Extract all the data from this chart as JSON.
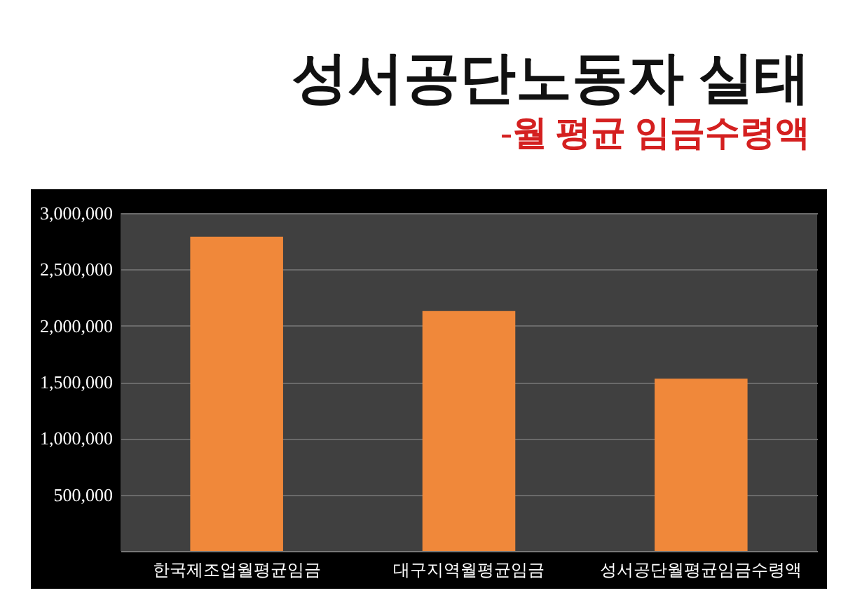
{
  "chart_data": {
    "type": "bar",
    "title": "성서공단노동자 실태",
    "subtitle": "-월 평균 임금수령액",
    "categories": [
      "한국제조업월평균임금",
      "대구지역월평균임금",
      "성서공단월평균임금수령액"
    ],
    "values": [
      2790000,
      2130000,
      1530000
    ],
    "color": "#f0883a",
    "ylim": [
      0,
      3000000
    ],
    "yticks": [
      {
        "value": 500000,
        "label": "500,000"
      },
      {
        "value": 1000000,
        "label": "1,000,000"
      },
      {
        "value": 1500000,
        "label": "1,500,000"
      },
      {
        "value": 2000000,
        "label": "2,000,000"
      },
      {
        "value": 2500000,
        "label": "2,500,000"
      },
      {
        "value": 3000000,
        "label": "3,000,000"
      }
    ],
    "grid": "y"
  }
}
